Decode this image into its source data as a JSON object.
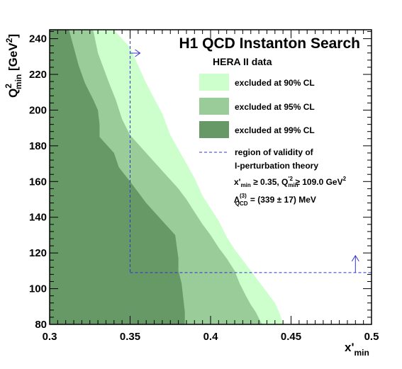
{
  "chart_data": {
    "type": "area",
    "title": "H1 QCD Instanton Search",
    "subtitle": "HERA II data",
    "xlabel": {
      "main": "x'",
      "sub": "min"
    },
    "ylabel": {
      "main": "Q",
      "sup": "2",
      "sub": "min",
      "unit_open": " [GeV",
      "unit_sup": "2",
      "unit_close": "]"
    },
    "xlim": [
      0.3,
      0.5
    ],
    "ylim": [
      80,
      245
    ],
    "x_ticks": [
      "0.3",
      "0.35",
      "0.4",
      "0.45",
      "0.5"
    ],
    "y_ticks": [
      "80",
      "100",
      "120",
      "140",
      "160",
      "180",
      "200",
      "220",
      "240"
    ],
    "colors": {
      "cl90": "#ccffcc",
      "cl95": "#99cc99",
      "cl99": "#669966",
      "validity": "#3333cc"
    },
    "series": [
      {
        "name": "excluded at 90% CL",
        "color": "#ccffcc",
        "boundary": [
          [
            0.3,
            245
          ],
          [
            0.34,
            245
          ],
          [
            0.35,
            235
          ],
          [
            0.36,
            215
          ],
          [
            0.37,
            198
          ],
          [
            0.375,
            186
          ],
          [
            0.38,
            178
          ],
          [
            0.385,
            170
          ],
          [
            0.39,
            162
          ],
          [
            0.395,
            152
          ],
          [
            0.4,
            145
          ],
          [
            0.405,
            138
          ],
          [
            0.41,
            129
          ],
          [
            0.415,
            122
          ],
          [
            0.42,
            116
          ],
          [
            0.425,
            110
          ],
          [
            0.43,
            104
          ],
          [
            0.435,
            98
          ],
          [
            0.44,
            92
          ],
          [
            0.443,
            86
          ],
          [
            0.445,
            80
          ]
        ]
      },
      {
        "name": "excluded at 95% CL",
        "color": "#99cc99",
        "boundary": [
          [
            0.3,
            245
          ],
          [
            0.327,
            245
          ],
          [
            0.33,
            232
          ],
          [
            0.337,
            215
          ],
          [
            0.341,
            206
          ],
          [
            0.345,
            195
          ],
          [
            0.35,
            186
          ],
          [
            0.36,
            176
          ],
          [
            0.37,
            166
          ],
          [
            0.38,
            156
          ],
          [
            0.385,
            150
          ],
          [
            0.39,
            143
          ],
          [
            0.395,
            136
          ],
          [
            0.4,
            130
          ],
          [
            0.405,
            123
          ],
          [
            0.41,
            117
          ],
          [
            0.415,
            110
          ],
          [
            0.418,
            103
          ],
          [
            0.422,
            96
          ],
          [
            0.425,
            91
          ],
          [
            0.428,
            87
          ],
          [
            0.432,
            80
          ]
        ]
      },
      {
        "name": "excluded at 99% CL",
        "color": "#669966",
        "boundary": [
          [
            0.3,
            245
          ],
          [
            0.312,
            245
          ],
          [
            0.315,
            235
          ],
          [
            0.318,
            225
          ],
          [
            0.322,
            215
          ],
          [
            0.327,
            206
          ],
          [
            0.33,
            200
          ],
          [
            0.331,
            192
          ],
          [
            0.331,
            185
          ],
          [
            0.34,
            176
          ],
          [
            0.343,
            168
          ],
          [
            0.35,
            160
          ],
          [
            0.36,
            148
          ],
          [
            0.37,
            138
          ],
          [
            0.378,
            130
          ],
          [
            0.38,
            117
          ],
          [
            0.38,
            110
          ],
          [
            0.382,
            103
          ],
          [
            0.383,
            95
          ],
          [
            0.384,
            87
          ],
          [
            0.384,
            80
          ]
        ]
      }
    ],
    "validity_region": {
      "name": "region of validity of",
      "name2": "I-perturbation theory",
      "x_min": 0.35,
      "q2_min": 109.0
    },
    "legend_position": "top-right",
    "annotations": {
      "cut_x_main": "x'",
      "cut_x_sub": "min",
      "cut_x_rest": " ≥ 0.35,  Q",
      "cut_q_sub": "min",
      "cut_q_sup": "'2",
      "cut_q_rest": " ≥ 109.0 GeV",
      "cut_q_unit_sup": "2",
      "lambda_main": "Λ",
      "lambda_sup": "(3)",
      "lambda_sub": "QCD",
      "lambda_rest": " = (339 ± 17) MeV"
    }
  }
}
